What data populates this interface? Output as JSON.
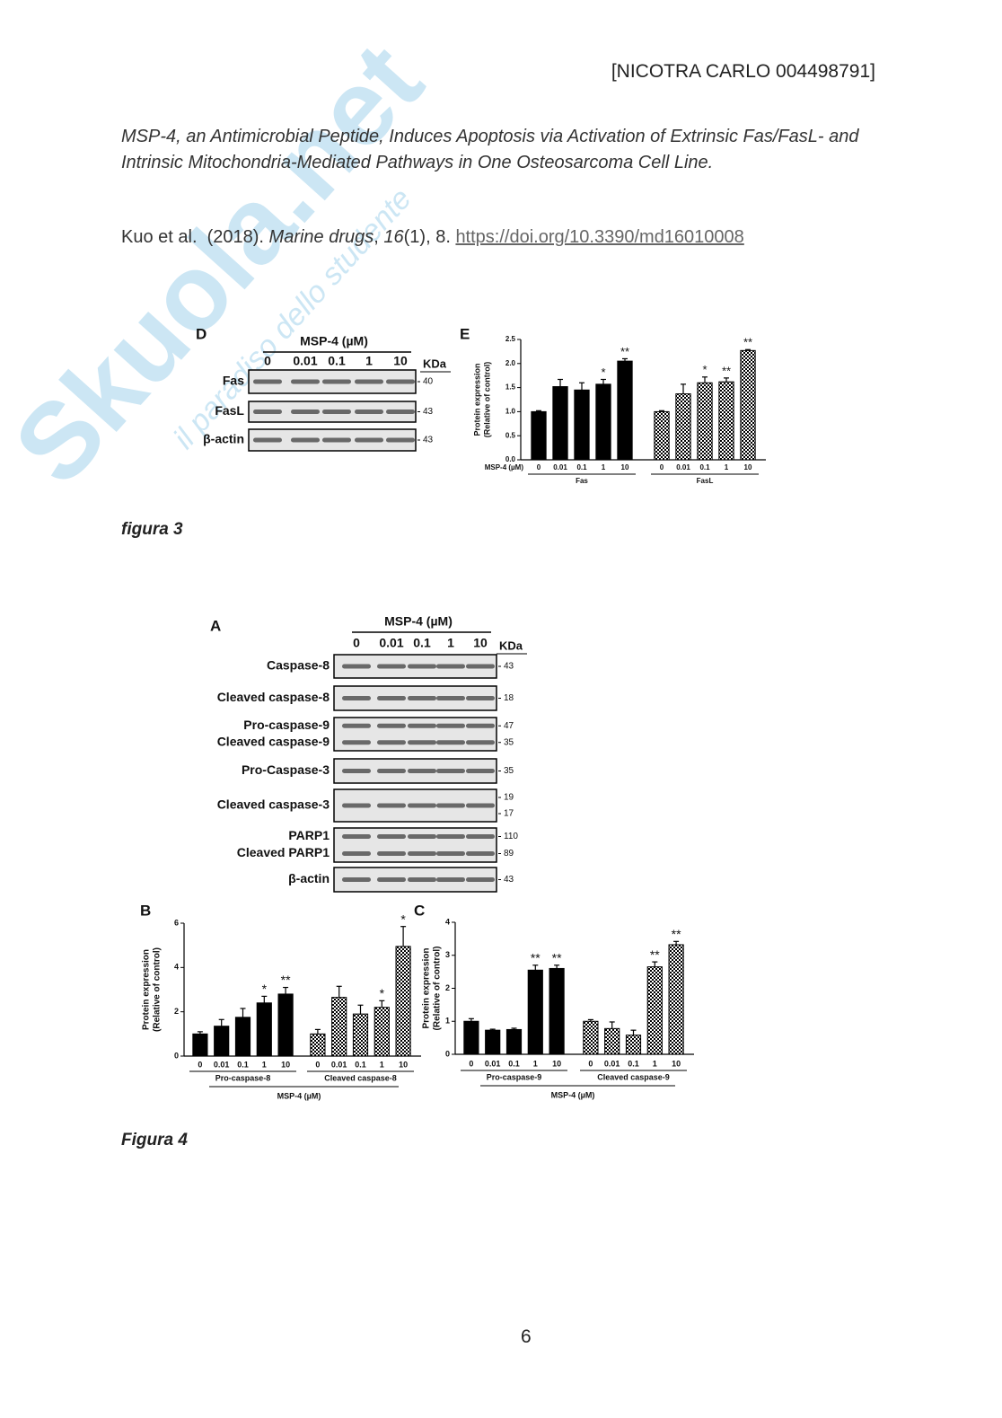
{
  "watermark": {
    "brand": "Skuola.net",
    "tagline": "il paradiso dello studente"
  },
  "header": {
    "author": "[NICOTRA CARLO 004498791]"
  },
  "reference": {
    "title": "MSP-4, an Antimicrobial Peptide, Induces Apoptosis via Activation of Extrinsic Fas/FasL- and Intrinsic Mitochondria-Mediated Pathways in One Osteosarcoma Cell Line.",
    "segments": [
      {
        "text": "Kuo et al.  (2018). ",
        "style": "normal"
      },
      {
        "text": "Marine drugs",
        "style": "italic"
      },
      {
        "text": ", ",
        "style": "normal"
      },
      {
        "text": "16",
        "style": "italic"
      },
      {
        "text": "(1), 8. ",
        "style": "normal"
      },
      {
        "text": "https://doi.org/10.3390/md16010008",
        "style": "link"
      }
    ]
  },
  "figure3": {
    "blot": {
      "panel": "D",
      "treatment": "MSP-4 (µM)",
      "lanes": [
        "0",
        "0.01",
        "0.1",
        "1",
        "10"
      ],
      "unit": "KDa",
      "rows": [
        {
          "labels": [
            "Fas"
          ],
          "kda": [
            "40"
          ]
        },
        {
          "labels": [
            "FasL"
          ],
          "kda": [
            "43"
          ]
        },
        {
          "labels": [
            "β-actin"
          ],
          "kda": [
            "43"
          ]
        }
      ]
    },
    "chart": {
      "type": "bar",
      "panel": "E",
      "y_label": [
        "Protein expression",
        "(Relative of control)"
      ],
      "ylim": [
        0,
        2.5
      ],
      "yticks": [
        {
          "value": 0,
          "label": "0.0"
        },
        0.5,
        {
          "value": 1,
          "label": "1.0"
        },
        1.5,
        {
          "value": 2,
          "label": "2.0"
        },
        2.5
      ],
      "categories": [
        "0",
        "0.01",
        "0.1",
        "1",
        "10"
      ],
      "x_label": "MSP-4 (µM)",
      "groups": [
        {
          "name": "Fas",
          "pattern": "solid",
          "values": [
            1.0,
            1.52,
            1.45,
            1.57,
            2.05
          ],
          "errors": [
            0.02,
            0.15,
            0.15,
            0.1,
            0.05
          ],
          "annotations": [
            {
              "index": 3,
              "label": "*"
            },
            {
              "index": 4,
              "label": "**"
            }
          ]
        },
        {
          "name": "FasL",
          "pattern": "checkered",
          "values": [
            1.0,
            1.37,
            1.6,
            1.62,
            2.27
          ],
          "errors": [
            0.02,
            0.2,
            0.12,
            0.08,
            0.02
          ],
          "annotations": [
            {
              "index": 2,
              "label": "*"
            },
            {
              "index": 3,
              "label": "**"
            },
            {
              "index": 4,
              "label": "**"
            }
          ]
        }
      ]
    },
    "caption": "figura 3"
  },
  "figure4": {
    "blot": {
      "panel": "A",
      "treatment": "MSP-4 (µM)",
      "lanes": [
        "0",
        "0.01",
        "0.1",
        "1",
        "10"
      ],
      "unit": "KDa",
      "rows": [
        {
          "labels": [
            "Caspase-8"
          ],
          "kda": [
            "43"
          ]
        },
        {
          "labels": [
            "Cleaved caspase-8"
          ],
          "kda": [
            "18"
          ]
        },
        {
          "labels": [
            "Pro-caspase-9",
            "Cleaved caspase-9"
          ],
          "kda": [
            "47",
            "35"
          ]
        },
        {
          "labels": [
            "Pro-Caspase-3"
          ],
          "kda": [
            "35"
          ]
        },
        {
          "labels": [
            "Cleaved caspase-3"
          ],
          "kda": [
            "19",
            "17"
          ]
        },
        {
          "labels": [
            "PARP1",
            "Cleaved PARP1"
          ],
          "kda": [
            "110",
            "89"
          ]
        },
        {
          "labels": [
            "β-actin"
          ],
          "kda": [
            "43"
          ]
        }
      ]
    },
    "charts": [
      {
        "type": "bar",
        "panel": "B",
        "y_label": [
          "Protein expression",
          "(Relative of control)"
        ],
        "ylim": [
          0,
          6
        ],
        "yticks": [
          0,
          2,
          4,
          6
        ],
        "categories": [
          "0",
          "0.01",
          "0.1",
          "1",
          "10"
        ],
        "x_label": "MSP-4 (µM)",
        "groups": [
          {
            "name": "Pro-caspase-8",
            "pattern": "solid",
            "values": [
              1.0,
              1.35,
              1.75,
              2.4,
              2.8
            ],
            "errors": [
              0.1,
              0.3,
              0.4,
              0.3,
              0.3
            ],
            "annotations": [
              {
                "index": 3,
                "label": "*"
              },
              {
                "index": 4,
                "label": "**"
              }
            ]
          },
          {
            "name": "Cleaved caspase-8",
            "pattern": "checkered",
            "values": [
              1.0,
              2.65,
              1.9,
              2.2,
              4.95
            ],
            "errors": [
              0.2,
              0.5,
              0.4,
              0.3,
              0.9
            ],
            "annotations": [
              {
                "index": 3,
                "label": "*"
              },
              {
                "index": 4,
                "label": "*"
              }
            ]
          }
        ]
      },
      {
        "type": "bar",
        "panel": "C",
        "y_label": [
          "Protein expression",
          "(Relative of control)"
        ],
        "ylim": [
          0,
          4
        ],
        "yticks": [
          0,
          1,
          2,
          3,
          4
        ],
        "categories": [
          "0",
          "0.01",
          "0.1",
          "1",
          "10"
        ],
        "x_label": "MSP-4 (µM)",
        "groups": [
          {
            "name": "Pro-caspase-9",
            "pattern": "solid",
            "values": [
              1.0,
              0.73,
              0.75,
              2.55,
              2.6
            ],
            "errors": [
              0.08,
              0.03,
              0.04,
              0.15,
              0.1
            ],
            "annotations": [
              {
                "index": 3,
                "label": "**"
              },
              {
                "index": 4,
                "label": "**"
              }
            ]
          },
          {
            "name": "Cleaved caspase-9",
            "pattern": "checkered",
            "values": [
              1.0,
              0.78,
              0.58,
              2.65,
              3.32
            ],
            "errors": [
              0.05,
              0.2,
              0.15,
              0.15,
              0.1
            ],
            "annotations": [
              {
                "index": 3,
                "label": "**"
              },
              {
                "index": 4,
                "label": "**"
              }
            ]
          }
        ]
      }
    ],
    "caption": "Figura 4"
  },
  "page_number": "6"
}
